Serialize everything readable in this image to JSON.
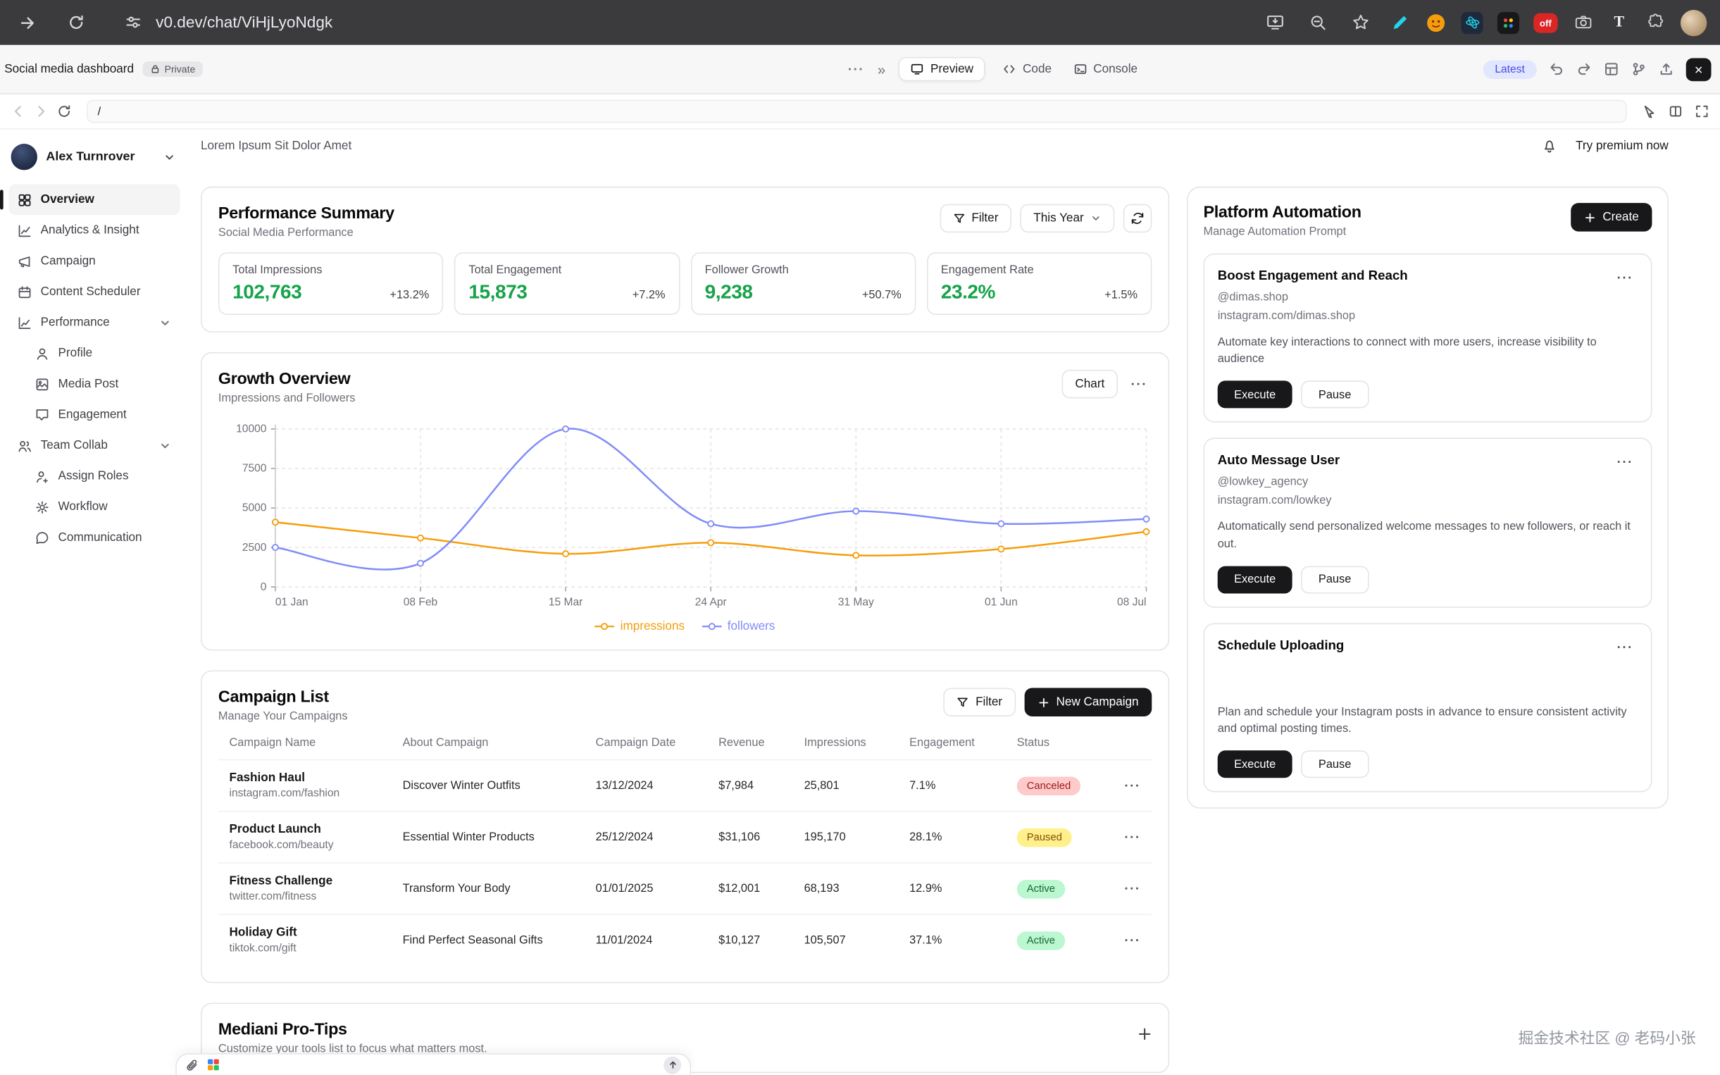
{
  "browser": {
    "url": "v0.dev/chat/ViHjLyoNdgk",
    "extension_off_label": "off",
    "extension_t_label": "T"
  },
  "ui": {
    "dots": "···"
  },
  "v0_toolbar": {
    "project_name": "Social media dashboard",
    "private_label": "Private",
    "menu_dots": "···",
    "chevrons": "»",
    "preview_label": "Preview",
    "code_label": "Code",
    "console_label": "Console",
    "latest_label": "Latest",
    "close_label": "×"
  },
  "preview_nav": {
    "path": "/"
  },
  "sidebar": {
    "user_name": "Alex Turnrover",
    "items": [
      {
        "label": "Overview"
      },
      {
        "label": "Analytics & Insight"
      },
      {
        "label": "Campaign"
      },
      {
        "label": "Content Scheduler"
      },
      {
        "label": "Performance"
      },
      {
        "label": "Profile"
      },
      {
        "label": "Media Post"
      },
      {
        "label": "Engagement"
      },
      {
        "label": "Team Collab"
      },
      {
        "label": "Assign Roles"
      },
      {
        "label": "Workflow"
      },
      {
        "label": "Communication"
      }
    ]
  },
  "header": {
    "title": "Lorem Ipsum Sit Dolor Amet",
    "premium_label": "Try premium now"
  },
  "performance_summary": {
    "title": "Performance Summary",
    "subtitle": "Social Media Performance",
    "filter_label": "Filter",
    "period_label": "This Year",
    "stats": [
      {
        "label": "Total Impressions",
        "value": "102,763",
        "delta": "+13.2%"
      },
      {
        "label": "Total Engagement",
        "value": "15,873",
        "delta": "+7.2%"
      },
      {
        "label": "Follower Growth",
        "value": "9,238",
        "delta": "+50.7%"
      },
      {
        "label": "Engagement Rate",
        "value": "23.2%",
        "delta": "+1.5%"
      }
    ]
  },
  "growth_overview": {
    "title": "Growth Overview",
    "subtitle": "Impressions and Followers",
    "chart_button_label": "Chart"
  },
  "chart_data": {
    "type": "line",
    "title": "Growth Overview",
    "x": [
      "01 Jan",
      "08 Feb",
      "15 Mar",
      "24 Apr",
      "31 May",
      "01 Jun",
      "08 Jul"
    ],
    "yticks": [
      0,
      2500,
      5000,
      7500,
      10000
    ],
    "ylim": [
      0,
      10000
    ],
    "grid": true,
    "legend_position": "bottom",
    "series": [
      {
        "name": "impressions",
        "color": "#f59e0b",
        "values": [
          4100,
          3100,
          2100,
          2800,
          2000,
          2400,
          3500
        ]
      },
      {
        "name": "followers",
        "color": "#818cf8",
        "values": [
          2500,
          1500,
          10000,
          4000,
          4800,
          4000,
          4300
        ]
      }
    ]
  },
  "campaign_list": {
    "title": "Campaign List",
    "subtitle": "Manage Your Campaigns",
    "filter_label": "Filter",
    "new_campaign_label": "New Campaign",
    "columns": [
      "Campaign Name",
      "About Campaign",
      "Campaign Date",
      "Revenue",
      "Impressions",
      "Engagement",
      "Status"
    ],
    "rows": [
      {
        "name": "Fashion Haul",
        "url": "instagram.com/fashion",
        "about": "Discover Winter Outfits",
        "date": "13/12/2024",
        "revenue": "$7,984",
        "impressions": "25,801",
        "engagement": "7.1%",
        "status": "Canceled",
        "status_type": "canceled"
      },
      {
        "name": "Product Launch",
        "url": "facebook.com/beauty",
        "about": "Essential Winter Products",
        "date": "25/12/2024",
        "revenue": "$31,106",
        "impressions": "195,170",
        "engagement": "28.1%",
        "status": "Paused",
        "status_type": "paused"
      },
      {
        "name": "Fitness Challenge",
        "url": "twitter.com/fitness",
        "about": "Transform Your Body",
        "date": "01/01/2025",
        "revenue": "$12,001",
        "impressions": "68,193",
        "engagement": "12.9%",
        "status": "Active",
        "status_type": "active"
      },
      {
        "name": "Holiday Gift",
        "url": "tiktok.com/gift",
        "about": "Find Perfect Seasonal Gifts",
        "date": "11/01/2024",
        "revenue": "$10,127",
        "impressions": "105,507",
        "engagement": "37.1%",
        "status": "Active",
        "status_type": "active"
      }
    ]
  },
  "pro_tips": {
    "title": "Mediani Pro-Tips",
    "subtitle": "Customize your tools list to focus what matters most."
  },
  "automation": {
    "title": "Platform Automation",
    "subtitle": "Manage Automation Prompt",
    "create_label": "Create",
    "execute_label": "Execute",
    "pause_label": "Pause",
    "cards": [
      {
        "title": "Boost Engagement and Reach",
        "handle": "@dimas.shop",
        "url": "instagram.com/dimas.shop",
        "description": "Automate key interactions to connect with more users, increase visibility to audience"
      },
      {
        "title": "Auto Message User",
        "handle": "@lowkey_agency",
        "url": "instagram.com/lowkey",
        "description": "Automatically send personalized welcome messages to new followers, or reach it out."
      },
      {
        "title": "Schedule Uploading",
        "handle": "",
        "url": "",
        "description": "Plan and schedule your Instagram posts in advance to ensure consistent activity and optimal posting times."
      }
    ]
  },
  "watermark": "掘金技术社区 @ 老码小张",
  "colors": {
    "accent_dark": "#18181b",
    "positive": "#16a34a",
    "impressions": "#f59e0b",
    "followers": "#818cf8",
    "active_bg": "#bbf7d0",
    "active_text": "#166534",
    "paused_bg": "#fef08a",
    "paused_text": "#854d0e",
    "canceled_bg": "#fecaca",
    "canceled_text": "#991b1b"
  }
}
